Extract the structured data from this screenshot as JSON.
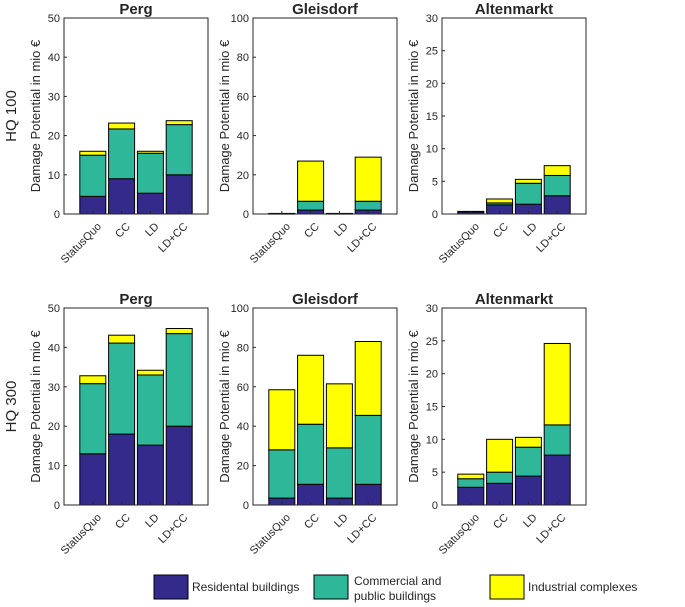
{
  "colors": {
    "residential": "#332a8c",
    "commercial": "#2fb79a",
    "industrial": "#ffff00"
  },
  "row_labels": [
    "HQ 100",
    "HQ 300"
  ],
  "legend": [
    {
      "key": "residential",
      "label": "Residental buildings"
    },
    {
      "key": "commercial",
      "label": "Commercial and public buildings",
      "lines": [
        "Commercial and",
        "public buildings"
      ]
    },
    {
      "key": "industrial",
      "label": "Industrial complexes"
    }
  ],
  "chart_data": [
    {
      "type": "bar",
      "stacked": true,
      "title": "Perg",
      "ylabel": "Damage Potential in mio €",
      "row": "HQ 100",
      "categories": [
        "StatusQuo",
        "CC",
        "LD",
        "LD+CC"
      ],
      "ylim": [
        0,
        50
      ],
      "yticks": [
        0,
        10,
        20,
        30,
        40,
        50
      ],
      "series": [
        {
          "name": "Residental buildings",
          "values": [
            4.5,
            9,
            5.3,
            10
          ]
        },
        {
          "name": "Commercial and public buildings",
          "values": [
            10.5,
            12.7,
            10.2,
            12.8
          ]
        },
        {
          "name": "Industrial complexes",
          "values": [
            1,
            1.5,
            0.5,
            1
          ]
        }
      ]
    },
    {
      "type": "bar",
      "stacked": true,
      "title": "Gleisdorf",
      "ylabel": "Damage Potential in mio €",
      "row": "HQ 100",
      "categories": [
        "StatusQuo",
        "CC",
        "LD",
        "LD+CC"
      ],
      "ylim": [
        0,
        100
      ],
      "yticks": [
        0,
        20,
        40,
        60,
        80,
        100
      ],
      "series": [
        {
          "name": "Residental buildings",
          "values": [
            0.2,
            2,
            0.2,
            2
          ]
        },
        {
          "name": "Commercial and public buildings",
          "values": [
            0.1,
            4.5,
            0.1,
            4.5
          ]
        },
        {
          "name": "Industrial complexes",
          "values": [
            0,
            20.5,
            0,
            22.5
          ]
        }
      ]
    },
    {
      "type": "bar",
      "stacked": true,
      "title": "Altenmarkt",
      "ylabel": "Damage Potential in mio €",
      "row": "HQ 100",
      "categories": [
        "StatusQuo",
        "CC",
        "LD",
        "LD+CC"
      ],
      "ylim": [
        0,
        30
      ],
      "yticks": [
        0,
        5,
        10,
        15,
        20,
        25,
        30
      ],
      "series": [
        {
          "name": "Residental buildings",
          "values": [
            0.3,
            1.4,
            1.5,
            2.8
          ]
        },
        {
          "name": "Commercial and public buildings",
          "values": [
            0.1,
            0.3,
            3.2,
            3.1
          ]
        },
        {
          "name": "Industrial complexes",
          "values": [
            0,
            0.6,
            0.6,
            1.5
          ]
        }
      ]
    },
    {
      "type": "bar",
      "stacked": true,
      "title": "Perg",
      "ylabel": "Damage Potential in mio €",
      "row": "HQ 300",
      "categories": [
        "StatusQuo",
        "CC",
        "LD",
        "LD+CC"
      ],
      "ylim": [
        0,
        50
      ],
      "yticks": [
        0,
        10,
        20,
        30,
        40,
        50
      ],
      "series": [
        {
          "name": "Residental buildings",
          "values": [
            13,
            18,
            15.2,
            20
          ]
        },
        {
          "name": "Commercial and public buildings",
          "values": [
            17.8,
            23.1,
            17.8,
            23.5
          ]
        },
        {
          "name": "Industrial complexes",
          "values": [
            2,
            2,
            1.2,
            1.3
          ]
        }
      ]
    },
    {
      "type": "bar",
      "stacked": true,
      "title": "Gleisdorf",
      "ylabel": "Damage Potential in mio €",
      "row": "HQ 300",
      "categories": [
        "StatusQuo",
        "CC",
        "LD",
        "LD+CC"
      ],
      "ylim": [
        0,
        100
      ],
      "yticks": [
        0,
        20,
        40,
        60,
        80,
        100
      ],
      "series": [
        {
          "name": "Residental buildings",
          "values": [
            3.5,
            10.5,
            3.5,
            10.5
          ]
        },
        {
          "name": "Commercial and public buildings",
          "values": [
            24.5,
            30.5,
            25.5,
            35
          ]
        },
        {
          "name": "Industrial complexes",
          "values": [
            30.5,
            35,
            32.5,
            37.5
          ]
        }
      ]
    },
    {
      "type": "bar",
      "stacked": true,
      "title": "Altenmarkt",
      "ylabel": "Damage Potential in mio €",
      "row": "HQ 300",
      "categories": [
        "StatusQuo",
        "CC",
        "LD",
        "LD+CC"
      ],
      "ylim": [
        0,
        30
      ],
      "yticks": [
        0,
        5,
        10,
        15,
        20,
        25,
        30
      ],
      "series": [
        {
          "name": "Residental buildings",
          "values": [
            2.7,
            3.3,
            4.4,
            7.6
          ]
        },
        {
          "name": "Commercial and public buildings",
          "values": [
            1.3,
            1.7,
            4.4,
            4.6
          ]
        },
        {
          "name": "Industrial complexes",
          "values": [
            0.7,
            5,
            1.5,
            12.4
          ]
        }
      ]
    }
  ]
}
